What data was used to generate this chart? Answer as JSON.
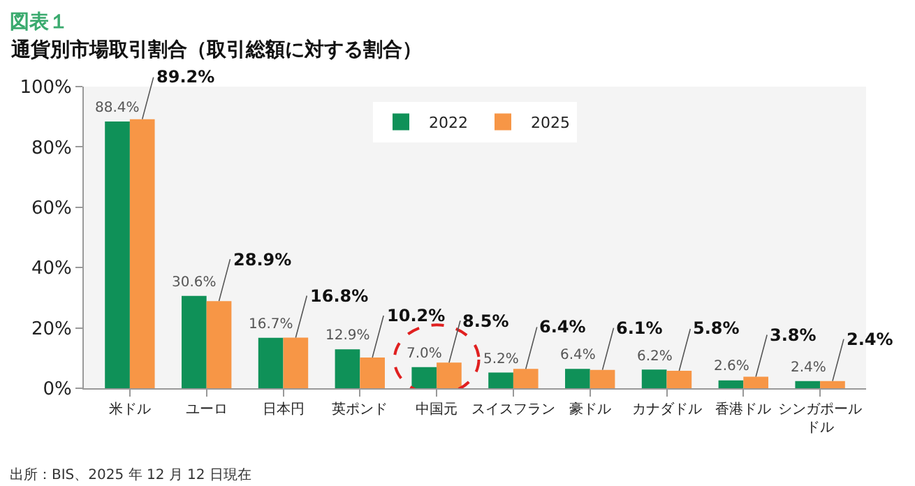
{
  "chart_data": {
    "type": "bar",
    "title": "図表１",
    "subtitle": "通貨別市場取引割合（取引総額に対する割合）",
    "categories": [
      "米ドル",
      "ユーロ",
      "日本円",
      "英ポンド",
      "中国元",
      "スイスフラン",
      "豪ドル",
      "カナダドル",
      "香港ドル",
      "シンガポールドル"
    ],
    "series": [
      {
        "name": "2022",
        "color": "#0f9158",
        "values": [
          88.4,
          30.6,
          16.7,
          12.9,
          7.0,
          5.2,
          6.4,
          6.2,
          2.6,
          2.4
        ],
        "value_labels": [
          "88.4%",
          "30.6%",
          "16.7%",
          "12.9%",
          "7.0%",
          "5.2%",
          "6.4%",
          "6.2%",
          "2.6%",
          "2.4%"
        ]
      },
      {
        "name": "2025",
        "color": "#f79646",
        "values": [
          89.2,
          28.9,
          16.8,
          10.2,
          8.5,
          6.4,
          6.1,
          5.8,
          3.8,
          2.4
        ],
        "value_labels": [
          "89.2%",
          "28.9%",
          "16.8%",
          "10.2%",
          "8.5%",
          "6.4%",
          "6.1%",
          "5.8%",
          "3.8%",
          "2.4%"
        ]
      }
    ],
    "ylim": [
      0,
      100
    ],
    "yticks": [
      {
        "value": 0,
        "label": "0%"
      },
      {
        "value": 20,
        "label": "20%"
      },
      {
        "value": 40,
        "label": "40%"
      },
      {
        "value": 60,
        "label": "60%"
      },
      {
        "value": 80,
        "label": "80%"
      },
      {
        "value": 100,
        "label": "100%"
      }
    ],
    "grid": false,
    "legend": "top",
    "annotations": [
      "出所：BIS、2025 年 12 月 12 日現在"
    ]
  }
}
